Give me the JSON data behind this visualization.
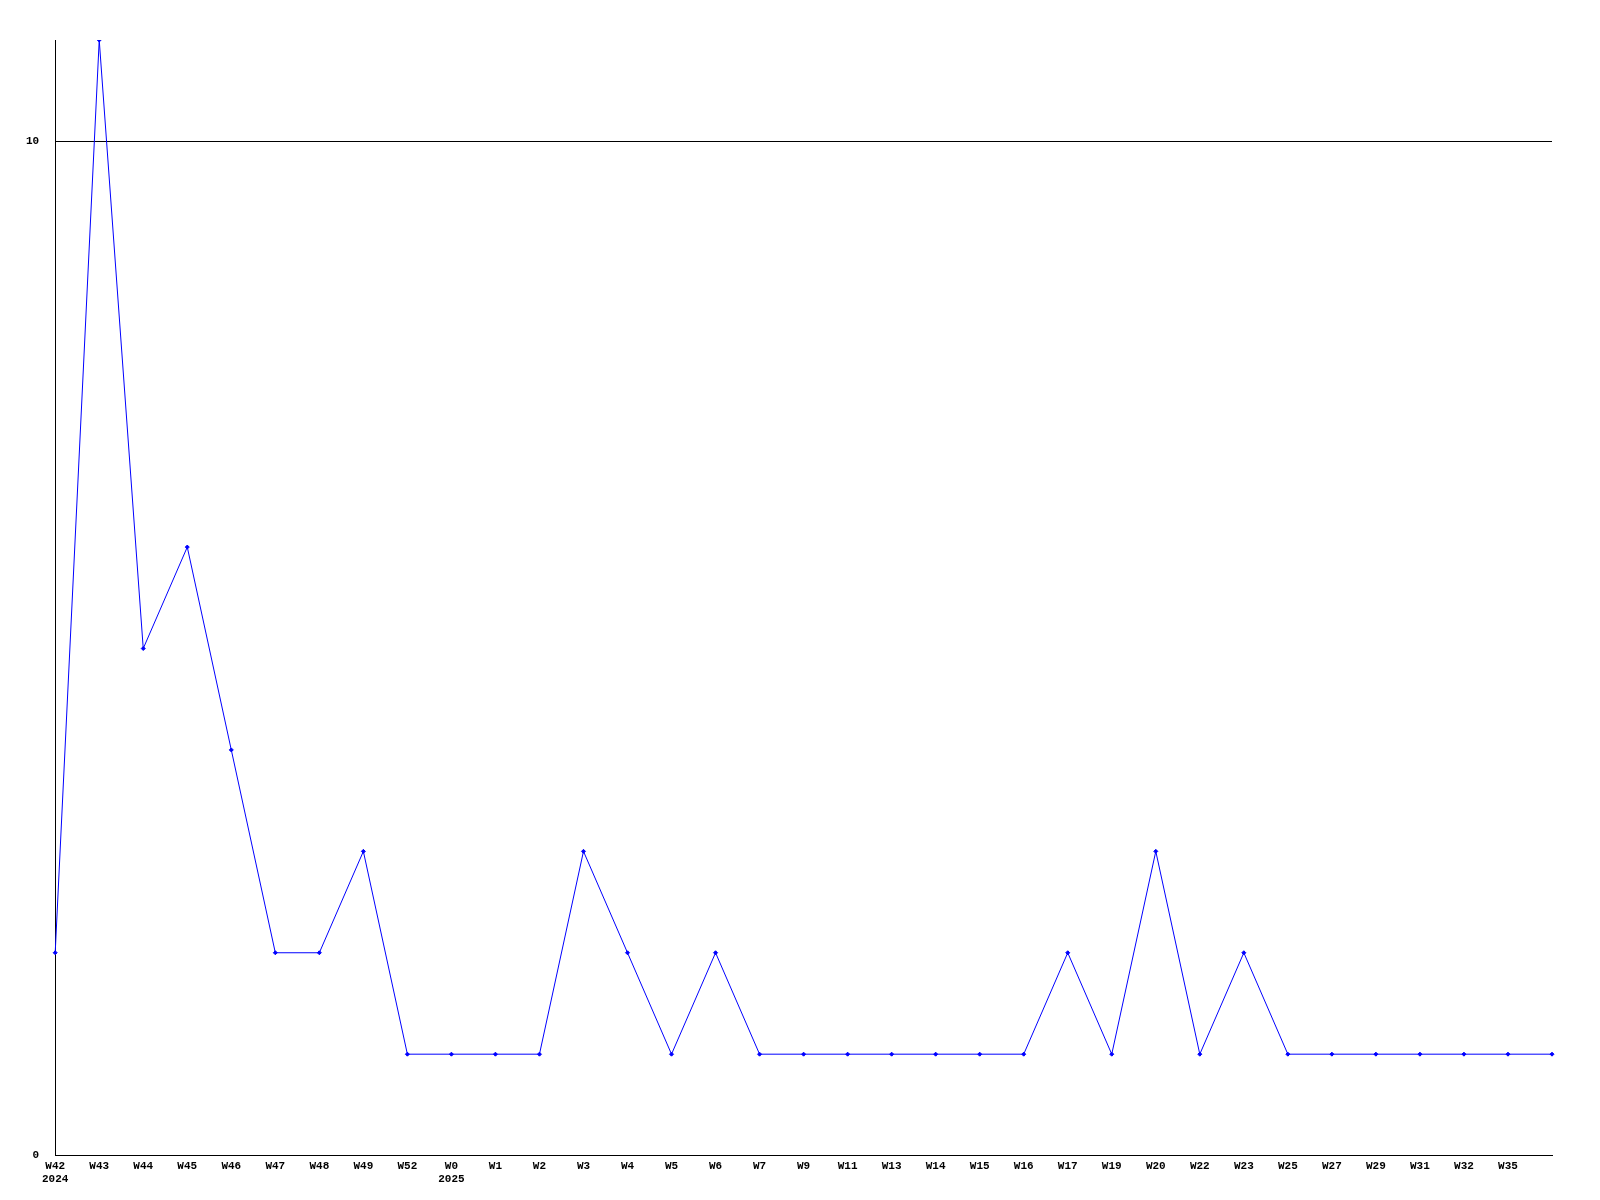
{
  "chart_data": {
    "type": "line",
    "categories": [
      "W42\n2024",
      "W43",
      "W44",
      "W45",
      "W46",
      "W47",
      "W48",
      "W49",
      "W52",
      "W0\n2025",
      "W1",
      "W2",
      "W3",
      "W4",
      "W5",
      "W6",
      "W7",
      "W9",
      "W11",
      "W13",
      "W14",
      "W15",
      "W16",
      "W17",
      "W19",
      "W20",
      "W22",
      "W23",
      "W25",
      "W27",
      "W29",
      "W31",
      "W32",
      "W35",
      null
    ],
    "series": [
      {
        "color": "#0000ff",
        "values": [
          2,
          11,
          5,
          6,
          4,
          2,
          2,
          3,
          1,
          1,
          1,
          1,
          3,
          2,
          1,
          2,
          1,
          1,
          1,
          1,
          1,
          1,
          1,
          2,
          1,
          3,
          1,
          2,
          1,
          1,
          1,
          1,
          1,
          1,
          1
        ]
      }
    ],
    "ylim": [
      0,
      11
    ],
    "yticks": [
      0,
      10
    ],
    "grid": "y",
    "legend": false,
    "marker": "diamond",
    "line_style": "solid"
  }
}
